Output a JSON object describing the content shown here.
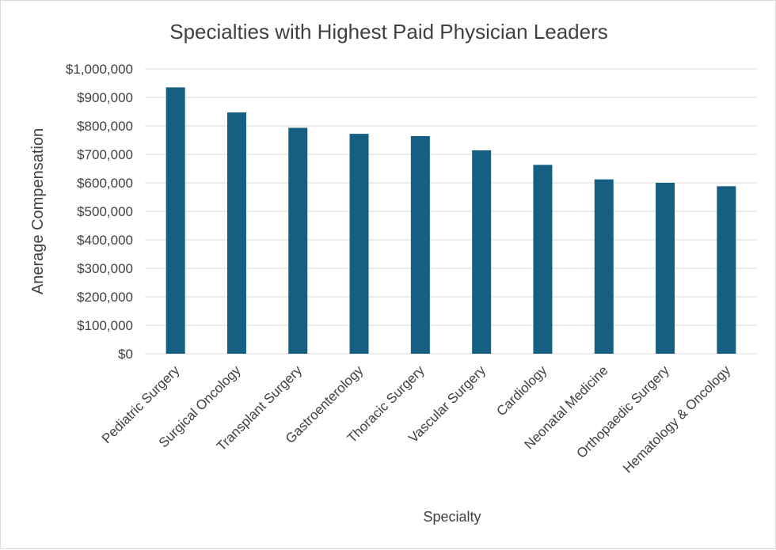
{
  "chart_data": {
    "type": "bar",
    "title": "Specialties with  Highest Paid Physician Leaders",
    "xlabel": "Specialty",
    "ylabel": "Anerage Compensation",
    "categories": [
      "Pediatric Surgery",
      "Surgical Oncology",
      "Transplant Surgery",
      "Gastroenterology",
      "Thoracic Surgery",
      "Vascular Surgery",
      "Cardiology",
      "Neonatal Medicine",
      "Orthopaedic Surgery",
      "Hematology & Oncology"
    ],
    "values": [
      935000,
      847000,
      793000,
      772000,
      764000,
      714000,
      663000,
      612000,
      600000,
      588000
    ],
    "ylim": [
      0,
      1000000
    ],
    "yticks": [
      0,
      100000,
      200000,
      300000,
      400000,
      500000,
      600000,
      700000,
      800000,
      900000,
      1000000
    ],
    "ytick_labels": [
      "$0",
      "$100,000",
      "$200,000",
      "$300,000",
      "$400,000",
      "$500,000",
      "$600,000",
      "$700,000",
      "$800,000",
      "$900,000",
      "$1,000,000"
    ],
    "grid": true,
    "legend": "none",
    "bar_color": "#156082",
    "grid_color": "#d9d9d9"
  }
}
